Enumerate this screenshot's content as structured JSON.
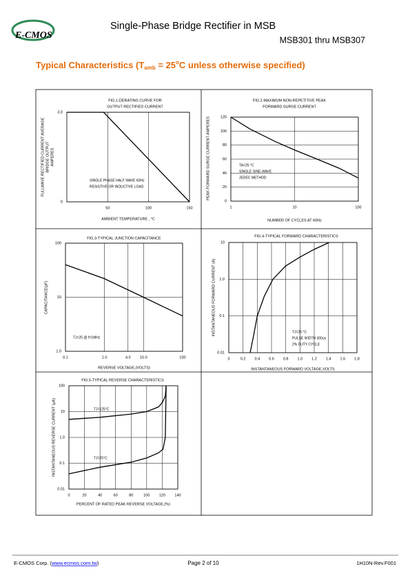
{
  "header": {
    "logo": "E-CMOS",
    "title": "Single-Phase Bridge Rectifier in MSB",
    "part": "MSB301 thru MSB307"
  },
  "section_title": [
    "Typical Characteristics (T",
    "amb",
    " = 25",
    "o",
    "C unless otherwise specified)"
  ],
  "chart_data": [
    {
      "type": "line",
      "title": [
        "FIG.1-DERATING CURVE FOR",
        "OUTPUT RECTIFIED CURRENT"
      ],
      "xlabel": "AMBIENT TEMPERATURE , °C",
      "ylabel": [
        "FULLWAVE RECTIFIED CURRENT AVERAGE",
        "BRIDGE OUTPUT",
        "AMPERES"
      ],
      "annotation": [
        "SINGLE PHASE HALF WAVE 60Hz",
        "RESISTIVE OR INDUCTIVE LOAD"
      ],
      "xlim": [
        0,
        150
      ],
      "xticks": [
        50,
        100,
        150
      ],
      "ylim": [
        0,
        3
      ],
      "yticks": [
        0,
        {
          "value": 3,
          "label": "3.0"
        }
      ],
      "grid": true,
      "series": [
        {
          "color": "#000000",
          "x": [
            0,
            45,
            150
          ],
          "values": [
            3,
            3,
            0
          ]
        }
      ]
    },
    {
      "type": "line",
      "title": [
        "FIG.2-MAXIMUM NON-REPETITIVE PEAK",
        "FORWARD SURGE CURRENT"
      ],
      "xlabel": "NUMBER OF CYCLES AT 60Hz",
      "ylabel": [
        "PEAK FORWARD SURGE CURRENT AMPERES"
      ],
      "annotation": [
        "TA=25 °C",
        "SINGLE SINE-WAVE",
        "JEDEC METHOD"
      ],
      "xscale": "log",
      "xlim": [
        1,
        100
      ],
      "xticks": [
        1,
        10,
        100
      ],
      "ylim": [
        0,
        120
      ],
      "yticks": [
        0,
        20,
        40,
        60,
        80,
        100,
        120
      ],
      "grid": true,
      "series": [
        {
          "color": "#000000",
          "x": [
            1,
            2,
            5,
            10,
            20,
            50,
            100
          ],
          "values": [
            120,
            103,
            85,
            73,
            62,
            47,
            33
          ]
        }
      ]
    },
    {
      "type": "line",
      "title": [
        "FIG.3-TYPICAL JUNCTION CAPACITANCE"
      ],
      "xlabel": "REVERSE VOLTAGE,(VOLTS)",
      "ylabel": [
        "CAPACITANCE(pF)"
      ],
      "annotation": [
        "TJ=25 @ f=1MHz"
      ],
      "xscale": "log",
      "yscale": "log",
      "xlim": [
        0.1,
        100
      ],
      "xticks": [
        0.1,
        {
          "value": 1,
          "label": "1.0"
        },
        {
          "value": 4,
          "label": "4.0"
        },
        {
          "value": 10,
          "label": "10.0"
        },
        100
      ],
      "ylim": [
        1,
        100
      ],
      "yticks": [
        {
          "value": 1,
          "label": "1.0"
        },
        10,
        100
      ],
      "grid": true,
      "series": [
        {
          "color": "#000000",
          "x": [
            0.1,
            1,
            10,
            100
          ],
          "values": [
            40,
            22,
            10,
            4.5
          ]
        }
      ]
    },
    {
      "type": "line",
      "title": [
        "FIG.4-TYPICAL FORWARD CHARACTERISTICS"
      ],
      "xlabel": "INSTANTANEOUS FORWARD VOLTAGE,VOLTS",
      "ylabel": [
        "INSTANTANEOUS FORWARD CURRENT (A)"
      ],
      "annotation": [
        "TJ=25 °C",
        "PULSE WIDTH 300us",
        "2% DUTY CYCLE"
      ],
      "yscale": "log",
      "xlim": [
        0,
        1.8
      ],
      "xticks": [
        0,
        0.2,
        0.4,
        0.6,
        0.8,
        {
          "value": 1,
          "label": "1.0"
        },
        1.2,
        1.4,
        1.6,
        1.8
      ],
      "ylim": [
        0.01,
        10
      ],
      "yticks": [
        0.01,
        0.1,
        {
          "value": 1,
          "label": "1.0"
        },
        10
      ],
      "grid": true,
      "series": [
        {
          "color": "#000000",
          "x": [
            0.3,
            0.35,
            0.4,
            0.5,
            0.62,
            0.8,
            1.0,
            1.2,
            1.41
          ],
          "values": [
            0.01,
            0.03,
            0.1,
            0.35,
            1,
            2.3,
            4,
            6.5,
            10
          ]
        }
      ]
    },
    {
      "type": "line",
      "title": [
        "FIG.5-TYPICAL REVERSE CHARACTERISTICS"
      ],
      "xlabel": "PERCENT OF RATED PEAK REVERSE VOLTAGE,(%)",
      "ylabel": [
        "INSTANTANEOUS REVERSE CURRENT (μA)"
      ],
      "yscale": "log",
      "xlim": [
        0,
        140
      ],
      "xticks": [
        0,
        20,
        40,
        60,
        80,
        100,
        120,
        140
      ],
      "ylim": [
        0.01,
        100
      ],
      "yticks": [
        0.01,
        0.1,
        {
          "value": 1,
          "label": "1.0"
        },
        10,
        100
      ],
      "grid": true,
      "series": [
        {
          "name": "TJ=125°C",
          "color": "#000000",
          "x": [
            0,
            40,
            80,
            100,
            115,
            120,
            124,
            125
          ],
          "values": [
            5,
            6,
            8,
            10,
            15,
            22,
            40,
            100
          ]
        },
        {
          "name": "TJ=25°C",
          "color": "#000000",
          "x": [
            0,
            40,
            80,
            100,
            115,
            121,
            124,
            125
          ],
          "values": [
            0.039,
            0.07,
            0.11,
            0.16,
            0.25,
            0.35,
            1,
            100
          ]
        }
      ]
    }
  ],
  "footer": {
    "company": [
      "E-CMOS Corp. (",
      "www.ecmos.com.tw",
      ")"
    ],
    "page": "Page 2 of 10",
    "rev": "1H10N-Rev.F001"
  }
}
